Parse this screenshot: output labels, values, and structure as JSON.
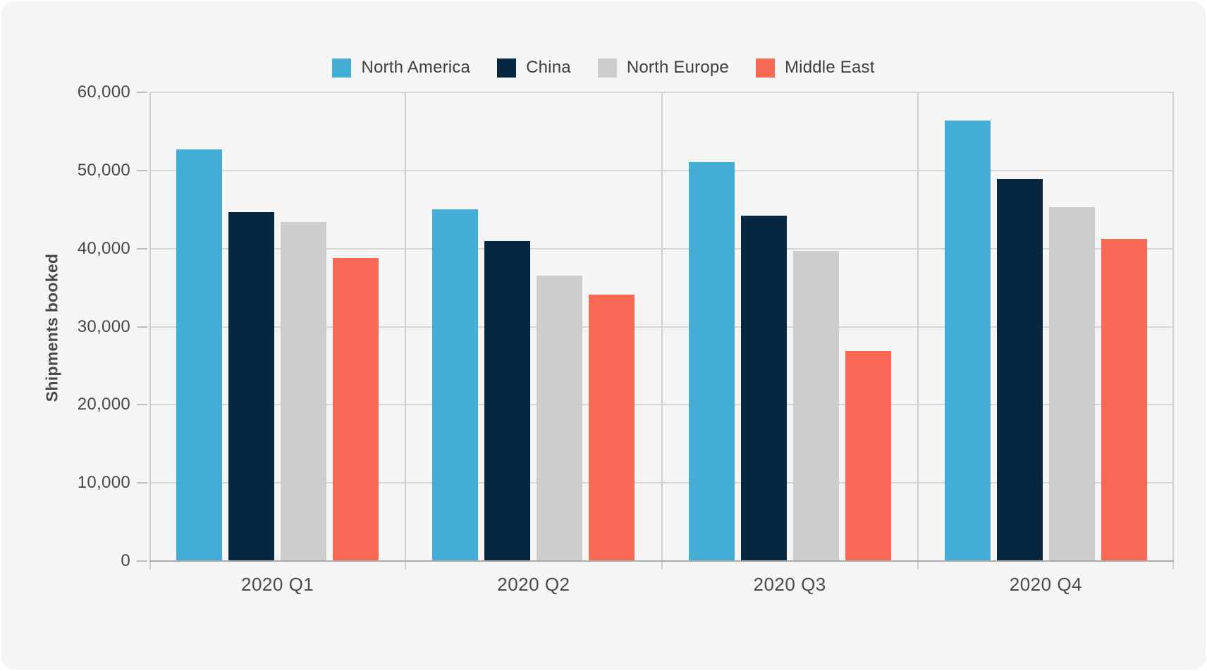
{
  "canvas": {
    "card_background": "#f5f5f6",
    "page_background": "#ffffff",
    "gridline_color": "#d7d7d7",
    "separator_color": "#cfcfcf",
    "baseline_color": "#ababab"
  },
  "chart_data": {
    "type": "bar",
    "title": "",
    "xlabel": "",
    "ylabel": "Shipments booked",
    "categories": [
      "2020 Q1",
      "2020 Q2",
      "2020 Q3",
      "2020 Q4"
    ],
    "series": [
      {
        "name": "North America",
        "color": "#43add5",
        "values": [
          52700,
          45000,
          51100,
          56400
        ]
      },
      {
        "name": "China",
        "color": "#07263f",
        "values": [
          44700,
          41000,
          44200,
          48900
        ]
      },
      {
        "name": "North Europe",
        "color": "#cdcdcd",
        "values": [
          43400,
          36500,
          39700,
          45300
        ]
      },
      {
        "name": "Middle East",
        "color": "#f96a56",
        "values": [
          38800,
          34100,
          26900,
          41200
        ]
      }
    ],
    "ylim": [
      0,
      60000
    ],
    "yticks": [
      0,
      10000,
      20000,
      30000,
      40000,
      50000,
      60000
    ],
    "ytick_labels": [
      "0",
      "10,000",
      "20,000",
      "30,000",
      "40,000",
      "50,000",
      "60,000"
    ],
    "grid": true,
    "group_separators": true,
    "legend_position": "top-center"
  }
}
